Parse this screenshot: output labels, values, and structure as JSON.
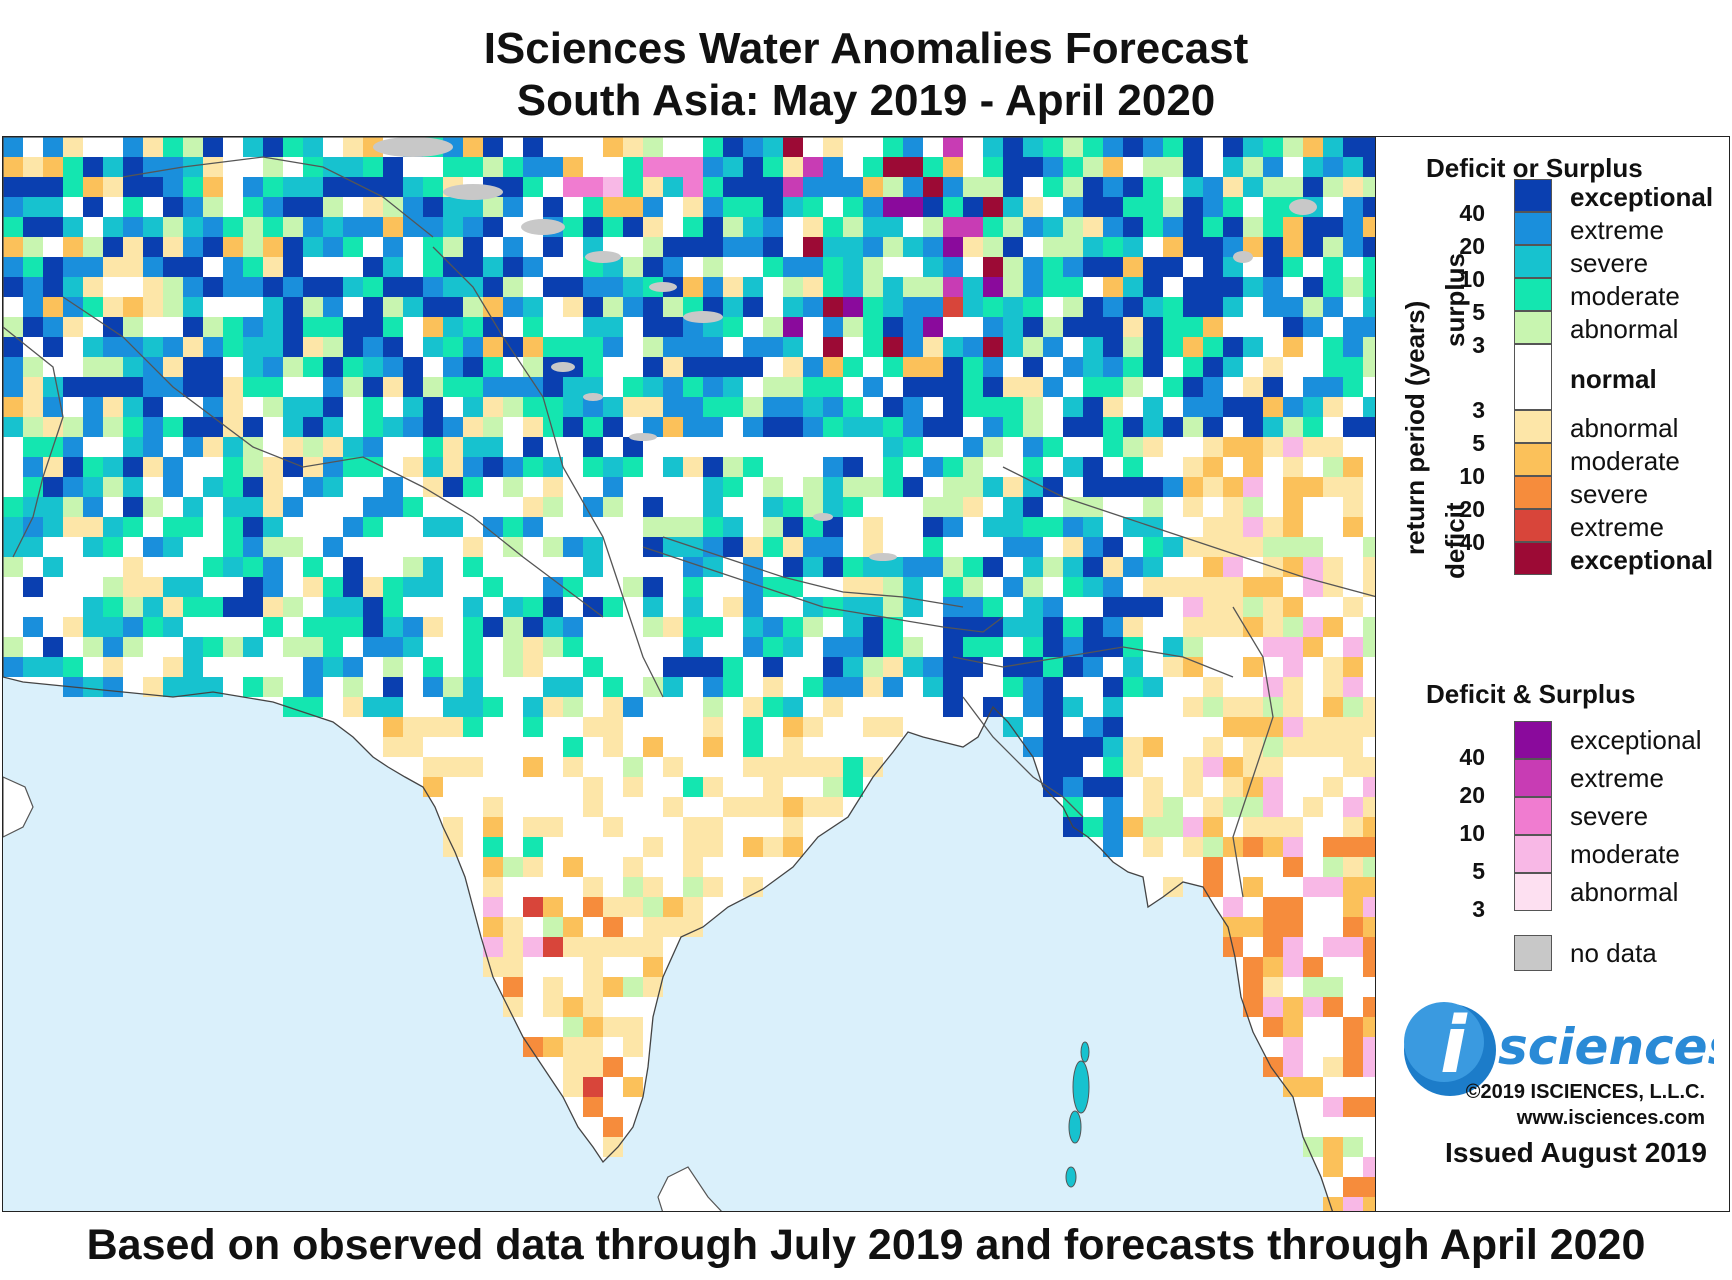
{
  "title": {
    "line1": "ISciences Water Anomalies Forecast",
    "line2": "South Asia: May 2019 - April 2020"
  },
  "footer": "Based on observed data through July 2019 and forecasts through April 2020",
  "legend": {
    "section1_title": "Deficit or Surplus",
    "axis_label": "return period (years)",
    "surplus_label": "surplus",
    "deficit_label": "deficit",
    "surplus_ticks": [
      "40",
      "20",
      "10",
      "5",
      "3"
    ],
    "deficit_ticks": [
      "3",
      "5",
      "10",
      "20",
      "40"
    ],
    "surplus_classes": [
      {
        "label": "exceptional",
        "color": "#0a3fb0"
      },
      {
        "label": "extreme",
        "color": "#1a8fdc"
      },
      {
        "label": "severe",
        "color": "#17c2cf"
      },
      {
        "label": "moderate",
        "color": "#14e6b0"
      },
      {
        "label": "abnormal",
        "color": "#c8f5b0"
      }
    ],
    "normal": {
      "label": "normal",
      "color": "#ffffff"
    },
    "deficit_classes": [
      {
        "label": "abnormal",
        "color": "#fde6a8"
      },
      {
        "label": "moderate",
        "color": "#fbc15a"
      },
      {
        "label": "severe",
        "color": "#f68c3c"
      },
      {
        "label": "extreme",
        "color": "#d8453a"
      },
      {
        "label": "exceptional",
        "color": "#9c0a35"
      }
    ],
    "section2_title": "Deficit & Surplus",
    "both_ticks": [
      "40",
      "20",
      "10",
      "5",
      "3"
    ],
    "both_classes": [
      {
        "label": "exceptional",
        "color": "#8a0a9c"
      },
      {
        "label": "extreme",
        "color": "#c83cb4"
      },
      {
        "label": "severe",
        "color": "#f07cd0"
      },
      {
        "label": "moderate",
        "color": "#f8b8e6"
      },
      {
        "label": "abnormal",
        "color": "#fde0f1"
      }
    ],
    "nodata": {
      "label": "no data",
      "color": "#c8c8c8"
    },
    "logo_letter": "i",
    "logo_text": "sciences",
    "copyright": "©2019 ISCIENCES, L.L.C.",
    "website": "www.isciences.com",
    "issued": "Issued August 2019"
  },
  "map": {
    "ocean_color": "#daf0fb",
    "land_color": "#ffffff",
    "border_color": "#555555"
  }
}
